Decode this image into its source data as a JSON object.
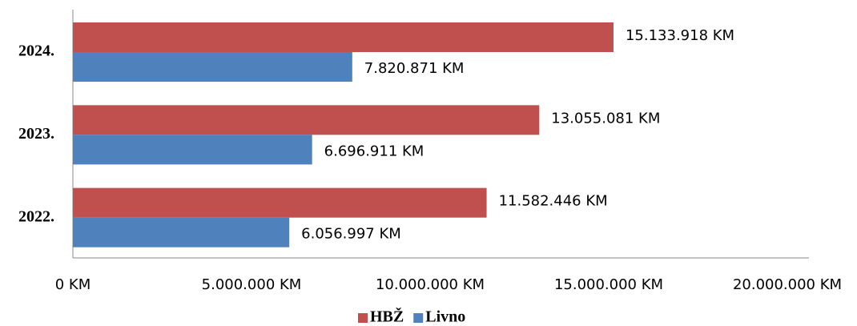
{
  "chart_data": {
    "type": "hbar",
    "categories": [
      "2024.",
      "2023.",
      "2022."
    ],
    "series": [
      {
        "name": "HBŽ",
        "color": "#c0504d",
        "values": [
          15133918,
          13055081,
          11582446
        ],
        "value_labels": [
          "15.133.918 KM",
          "13.055.081 KM",
          "11.582.446 KM"
        ]
      },
      {
        "name": "Livno",
        "color": "#4f81bd",
        "values": [
          7820871,
          6696911,
          6056997
        ],
        "value_labels": [
          "7.820.871 KM",
          "6.696.911 KM",
          "6.056.997 KM"
        ]
      }
    ],
    "xlim": [
      0,
      20000000
    ],
    "xticks": [
      {
        "value": 0,
        "label": "0 KM"
      },
      {
        "value": 5000000,
        "label": "5.000.000 KM"
      },
      {
        "value": 10000000,
        "label": "10.000.000 KM"
      },
      {
        "value": 15000000,
        "label": "15.000.000 KM"
      },
      {
        "value": 20000000,
        "label": "20.000.000 KM"
      }
    ],
    "legend": "bottom"
  }
}
